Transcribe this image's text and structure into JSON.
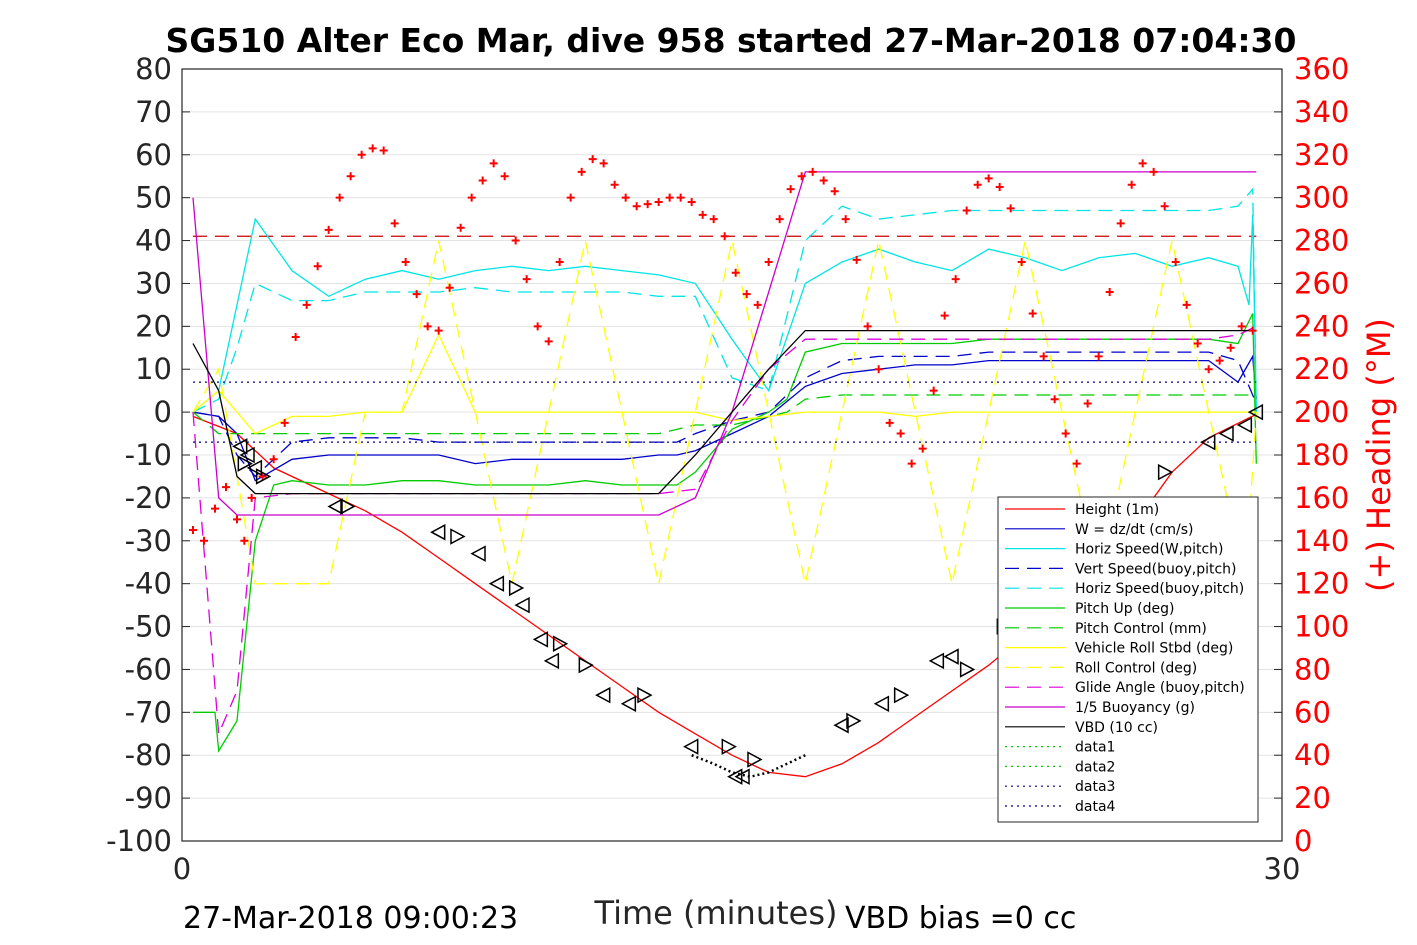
{
  "chart_data": {
    "type": "line",
    "title": "SG510 Alter Eco Mar, dive 958 started 27-Mar-2018 07:04:30",
    "xlabel": "Time (minutes)",
    "ylabel_left": "",
    "ylabel_right": "(+) Heading (°M)",
    "xlim": [
      0,
      30
    ],
    "ylim_left": [
      -100,
      80
    ],
    "ylim_right": [
      0,
      360
    ],
    "x_ticks": [
      "0",
      "30"
    ],
    "y_ticks_left": [
      "80",
      "70",
      "60",
      "50",
      "40",
      "30",
      "20",
      "10",
      "0",
      "-10",
      "-20",
      "-30",
      "-40",
      "-50",
      "-60",
      "-70",
      "-80",
      "-90",
      "-100"
    ],
    "y_ticks_right": [
      "360",
      "340",
      "320",
      "300",
      "280",
      "260",
      "240",
      "220",
      "200",
      "180",
      "160",
      "140",
      "120",
      "100",
      "80",
      "60",
      "40",
      "20",
      "0"
    ],
    "grid": true,
    "legend_position": "lower-right",
    "footer_left": "27-Mar-2018 09:00:23",
    "footer_right": "VBD bias =0 cc",
    "series": [
      {
        "name": "Height (1m)",
        "color": "#ff0000",
        "style": "solid",
        "x": [
          0.3,
          1.5,
          2.5,
          4,
          5,
          6,
          7,
          8,
          9,
          10,
          11,
          12,
          13,
          14,
          15,
          16,
          17,
          18,
          19,
          20,
          21,
          22,
          23,
          24,
          25,
          26,
          27,
          28,
          29.3
        ],
        "y": [
          -1,
          -5,
          -13,
          -19,
          -23,
          -28,
          -34,
          -40,
          -46,
          -52,
          -58,
          -64,
          -70,
          -75,
          -80,
          -84,
          -85,
          -82,
          -77,
          -71,
          -65,
          -59,
          -52,
          -45,
          -36,
          -26,
          -14,
          -6,
          -0.5
        ]
      },
      {
        "name": "W = dz/dt (cm/s)",
        "color": "#0000cc",
        "style": "solid",
        "x": [
          0.3,
          1,
          1.5,
          2,
          3,
          4,
          5,
          6,
          7,
          8,
          9,
          10,
          11,
          12,
          13,
          13.5,
          14,
          15,
          16,
          17,
          18,
          19,
          20,
          21,
          22,
          23,
          24,
          25,
          26,
          27,
          28,
          28.8,
          29.2,
          29.3
        ],
        "y": [
          0,
          -1,
          -5,
          -16,
          -11,
          -10,
          -10,
          -10,
          -10,
          -12,
          -11,
          -11,
          -11,
          -11,
          -10,
          -10,
          -9,
          -5,
          -1,
          6,
          9,
          10,
          11,
          11,
          12,
          12,
          12,
          12,
          12,
          12,
          12,
          7,
          13,
          3
        ]
      },
      {
        "name": "Horiz Speed(W,pitch)",
        "color": "#00e5e5",
        "style": "solid",
        "x": [
          0.3,
          1,
          1.5,
          2,
          3,
          4,
          5,
          6,
          7,
          8,
          9,
          10,
          11,
          12,
          13,
          14,
          15,
          16,
          17,
          18,
          19,
          20,
          21,
          22,
          23,
          24,
          25,
          26,
          27,
          28,
          28.8,
          29.1,
          29.2,
          29.3
        ],
        "y": [
          0,
          5,
          25,
          45,
          33,
          27,
          31,
          33,
          31,
          33,
          34,
          33,
          34,
          33,
          32,
          30,
          17,
          5,
          30,
          35,
          38,
          35,
          33,
          38,
          36,
          33,
          36,
          37,
          34,
          36,
          34,
          25,
          46,
          0
        ]
      },
      {
        "name": "Vert Speed(buoy,pitch)",
        "color": "#0000cc",
        "style": "dash",
        "x": [
          0.3,
          1,
          1.5,
          2,
          3,
          4,
          5,
          6,
          7,
          8,
          9,
          10,
          11,
          12,
          13,
          13.5,
          14,
          15,
          16,
          17,
          18,
          19,
          20,
          21,
          22,
          23,
          24,
          25,
          26,
          27,
          28,
          28.8,
          29.3
        ],
        "y": [
          0,
          -1,
          -10,
          -15,
          -7,
          -6,
          -6,
          -6,
          -7,
          -7,
          -7,
          -7,
          -7,
          -7,
          -7,
          -7,
          -5,
          -2,
          0,
          8,
          12,
          13,
          13,
          13,
          14,
          14,
          14,
          14,
          14,
          14,
          14,
          12,
          2
        ]
      },
      {
        "name": "Horiz Speed(buoy,pitch)",
        "color": "#00e5e5",
        "style": "dash",
        "x": [
          0.3,
          1,
          1.5,
          2,
          3,
          4,
          5,
          6,
          7,
          8,
          9,
          10,
          11,
          12,
          13,
          14,
          15,
          16,
          17,
          18,
          19,
          20,
          21,
          22,
          23,
          24,
          25,
          26,
          27,
          28,
          28.8,
          29.2,
          29.3
        ],
        "y": [
          0,
          3,
          15,
          30,
          26,
          26,
          28,
          28,
          28,
          29,
          28,
          28,
          28,
          28,
          27,
          27,
          8,
          5,
          40,
          48,
          45,
          46,
          47,
          47,
          47,
          47,
          47,
          47,
          47,
          47,
          48,
          52,
          0
        ]
      },
      {
        "name": "Pitch Up (deg)",
        "color": "#00cc00",
        "style": "solid",
        "x": [
          0.3,
          0.9,
          1,
          1.5,
          2,
          2.5,
          3,
          4,
          5,
          6,
          7,
          8,
          9,
          10,
          11,
          12,
          13,
          13.5,
          14,
          15,
          16,
          16.5,
          17,
          18,
          19,
          20,
          21,
          22,
          23,
          24,
          25,
          26,
          27,
          28,
          28.8,
          29.2,
          29.3
        ],
        "y": [
          -70,
          -70,
          -79,
          -72,
          -30,
          -17,
          -16,
          -17,
          -17,
          -16,
          -16,
          -17,
          -17,
          -17,
          -16,
          -17,
          -17,
          -17,
          -14,
          -4,
          0,
          3,
          14,
          16,
          16,
          16,
          16,
          17,
          17,
          17,
          17,
          17,
          17,
          17,
          16,
          23,
          -12
        ]
      },
      {
        "name": "Pitch Control (mm)",
        "color": "#00cc00",
        "style": "dash",
        "x": [
          0.3,
          1,
          2,
          3,
          13,
          14,
          15,
          16,
          16.5,
          17,
          18,
          19,
          20,
          25,
          29.3
        ],
        "y": [
          0,
          -5,
          -5,
          -5,
          -5,
          -3,
          -3,
          -1,
          0,
          3,
          4,
          4,
          4,
          4,
          4
        ],
        "note": ""
      },
      {
        "name": "Vehicle Roll Stbd (deg)",
        "color": "#ffff00",
        "style": "solid",
        "x": [
          0.3,
          1,
          2,
          3,
          4,
          5,
          6,
          7,
          8,
          9,
          10,
          11,
          12,
          13,
          14,
          15,
          16,
          17,
          18,
          19,
          20,
          21,
          22,
          23,
          24,
          25,
          26,
          27,
          28,
          29,
          29.3
        ],
        "y": [
          0,
          5,
          -5,
          -1,
          -1,
          0,
          0,
          18,
          0,
          0,
          0,
          0,
          0,
          0,
          0,
          -2,
          -1,
          0,
          0,
          0,
          -1,
          0,
          0,
          0,
          0,
          0,
          0,
          0,
          0,
          0,
          0
        ]
      },
      {
        "name": "Roll Control (deg)",
        "color": "#ffff00",
        "style": "dash",
        "x": [
          0.3,
          1,
          2,
          3,
          4,
          5,
          6,
          7,
          8,
          9,
          10,
          11,
          12,
          13,
          14,
          15,
          16,
          17,
          18,
          19,
          20,
          21,
          22,
          23,
          24,
          25,
          26,
          27,
          28,
          29,
          29.3
        ],
        "y": [
          0,
          10,
          -40,
          -40,
          -40,
          0,
          0,
          40,
          0,
          -40,
          0,
          40,
          0,
          -40,
          0,
          40,
          0,
          -40,
          0,
          40,
          0,
          -40,
          0,
          40,
          0,
          -40,
          0,
          40,
          0,
          -40,
          0
        ]
      },
      {
        "name": "Glide Angle (buoy,pitch)",
        "color": "#dd00dd",
        "style": "dash",
        "x": [
          0.3,
          1,
          1.5,
          2,
          3,
          4,
          5,
          6,
          7,
          8,
          9,
          10,
          11,
          12,
          13,
          14,
          15,
          16,
          17,
          18,
          19,
          20,
          21,
          22,
          23,
          24,
          25,
          26,
          27,
          28,
          28.8,
          29.3
        ],
        "y": [
          0,
          -75,
          -65,
          -20,
          -19,
          -19,
          -19,
          -19,
          -19,
          -19,
          -19,
          -19,
          -19,
          -19,
          -19,
          -18,
          -2,
          10,
          17,
          17,
          17,
          17,
          17,
          17,
          17,
          17,
          17,
          17,
          17,
          17,
          18,
          20
        ]
      },
      {
        "name": "1/5 Buoyancy (g)",
        "color": "#cc00cc",
        "style": "solid",
        "x": [
          0.3,
          1,
          1.5,
          2,
          3,
          4,
          5,
          6,
          7,
          8,
          9,
          10,
          11,
          12,
          13,
          14,
          15,
          16,
          17,
          18,
          19,
          20,
          21,
          22,
          23,
          24,
          25,
          26,
          27,
          28,
          29,
          29.3
        ],
        "y": [
          50,
          -20,
          -24,
          -24,
          -24,
          -24,
          -24,
          -24,
          -24,
          -24,
          -24,
          -24,
          -24,
          -24,
          -24,
          -20,
          0,
          28,
          56,
          56,
          56,
          56,
          56,
          56,
          56,
          56,
          56,
          56,
          56,
          56,
          56,
          56
        ]
      },
      {
        "name": "VBD (10 cc)",
        "color": "#000000",
        "style": "solid",
        "x": [
          0.3,
          1,
          1.5,
          2,
          3,
          4,
          5,
          6,
          7,
          8,
          9,
          10,
          11,
          12,
          13,
          14,
          15,
          16,
          17,
          18,
          19,
          20,
          21,
          22,
          23,
          24,
          25,
          26,
          27,
          28,
          29,
          29.3
        ],
        "y": [
          16,
          5,
          -15,
          -19,
          -19,
          -19,
          -19,
          -19,
          -19,
          -19,
          -19,
          -19,
          -19,
          -19,
          -19,
          -10,
          0,
          10,
          19,
          19,
          19,
          19,
          19,
          19,
          19,
          19,
          19,
          19,
          19,
          19,
          19,
          19
        ]
      },
      {
        "name": "data1",
        "color": "#00cc00",
        "style": "dot",
        "x": [],
        "y": []
      },
      {
        "name": "data2",
        "color": "#00cc00",
        "style": "dot",
        "x": [],
        "y": []
      },
      {
        "name": "data3",
        "color": "#000080",
        "style": "dot",
        "x": [
          0.3,
          29.3
        ],
        "y": [
          7,
          7
        ]
      },
      {
        "name": "data4",
        "color": "#000080",
        "style": "dot",
        "x": [
          0.3,
          29.3
        ],
        "y": [
          -7,
          -7
        ]
      }
    ],
    "heading_ref_line": {
      "color": "#cc0000",
      "style": "dash",
      "y_right": 282
    },
    "heading_points": {
      "color": "#ff0000",
      "marker": "+",
      "x": [
        0.3,
        0.6,
        0.9,
        1.2,
        1.5,
        1.7,
        1.9,
        2.2,
        2.5,
        2.8,
        3.1,
        3.4,
        3.7,
        4.0,
        4.3,
        4.6,
        4.9,
        5.2,
        5.5,
        5.8,
        6.1,
        6.4,
        6.7,
        7.0,
        7.3,
        7.6,
        7.9,
        8.2,
        8.5,
        8.8,
        9.1,
        9.4,
        9.7,
        10.0,
        10.3,
        10.6,
        10.9,
        11.2,
        11.5,
        11.8,
        12.1,
        12.4,
        12.7,
        13.0,
        13.3,
        13.6,
        13.9,
        14.2,
        14.5,
        14.8,
        15.1,
        15.4,
        15.7,
        16.0,
        16.3,
        16.6,
        16.9,
        17.2,
        17.5,
        17.8,
        18.1,
        18.4,
        18.7,
        19.0,
        19.3,
        19.6,
        19.9,
        20.2,
        20.5,
        20.8,
        21.1,
        21.4,
        21.7,
        22.0,
        22.3,
        22.6,
        22.9,
        23.2,
        23.5,
        23.8,
        24.1,
        24.4,
        24.7,
        25.0,
        25.3,
        25.6,
        25.9,
        26.2,
        26.5,
        26.8,
        27.1,
        27.4,
        27.7,
        28.0,
        28.3,
        28.6,
        28.9,
        29.2
      ],
      "y": [
        145,
        140,
        155,
        165,
        150,
        140,
        160,
        170,
        178,
        195,
        235,
        250,
        268,
        285,
        300,
        310,
        320,
        323,
        322,
        288,
        270,
        255,
        240,
        238,
        258,
        286,
        300,
        308,
        316,
        310,
        280,
        262,
        240,
        233,
        270,
        300,
        312,
        318,
        316,
        306,
        300,
        296,
        297,
        298,
        300,
        300,
        298,
        292,
        290,
        282,
        265,
        255,
        250,
        270,
        290,
        304,
        310,
        312,
        308,
        303,
        290,
        271,
        240,
        220,
        195,
        190,
        176,
        183,
        210,
        245,
        262,
        294,
        306,
        309,
        305,
        295,
        270,
        246,
        226,
        206,
        190,
        176,
        204,
        226,
        256,
        288,
        306,
        316,
        312,
        296,
        270,
        250,
        232,
        220,
        224,
        230,
        240,
        238
      ]
    },
    "markers": {
      "right_triangles_x": [
        1.7,
        2.2,
        4.5,
        7.5,
        9.1,
        10.3,
        11.0,
        12.6,
        14.9,
        15.6,
        18.3,
        19.6,
        21.4,
        22.4,
        23.5,
        26.8
      ],
      "right_triangles_y": [
        -12,
        -15,
        -22,
        -29,
        -41,
        -54,
        -59,
        -66,
        -78,
        -81,
        -72,
        -66,
        -60,
        -50,
        -38,
        -14
      ],
      "left_triangles_x": [
        1.6,
        1.8,
        2.0,
        4.2,
        7.0,
        8.1,
        8.6,
        9.3,
        9.8,
        10.1,
        11.5,
        12.2,
        13.9,
        15.1,
        15.3,
        18.0,
        19.1,
        20.6,
        21.0,
        22.6,
        28.0,
        28.5,
        29.0,
        29.3
      ],
      "left_triangles_y": [
        -8,
        -10,
        -13,
        -22,
        -28,
        -33,
        -40,
        -45,
        -53,
        -58,
        -66,
        -68,
        -78,
        -85,
        -85,
        -73,
        -68,
        -58,
        -57,
        -50,
        -7,
        -5,
        -3,
        0
      ],
      "dotted_bottom_x": [
        13.9,
        14.5,
        15,
        15.5,
        16,
        16.5,
        17
      ],
      "dotted_bottom_y": [
        -80,
        -82,
        -84,
        -85,
        -84,
        -82,
        -80
      ]
    }
  }
}
